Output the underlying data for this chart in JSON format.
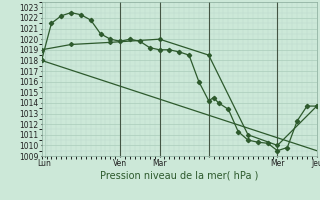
{
  "title": "",
  "xlabel": "Pression niveau de la mer( hPa )",
  "background_color": "#cce8d8",
  "grid_color_major": "#aaccbb",
  "grid_color_minor": "#bbd8cc",
  "line_color": "#2d5a2d",
  "ylim": [
    1009,
    1023.5
  ],
  "xlim": [
    0,
    28
  ],
  "x_tick_positions": [
    0.3,
    8,
    12,
    17,
    24,
    28
  ],
  "x_tick_labels": [
    "Lun",
    "Ven",
    "Mar",
    "",
    "Mer",
    "Jeu"
  ],
  "x_vlines": [
    8.0,
    12.0,
    17.0,
    24.0
  ],
  "line1_x": [
    0,
    1,
    2,
    3,
    4,
    5,
    6,
    7,
    8,
    9,
    10,
    11,
    12,
    13,
    14,
    15,
    16,
    17,
    17.5,
    18,
    19,
    20,
    21,
    22,
    23,
    24,
    25,
    26,
    27,
    28
  ],
  "line1_y": [
    1018.0,
    1021.5,
    1022.2,
    1022.5,
    1022.3,
    1021.8,
    1020.5,
    1020.0,
    1019.8,
    1020.0,
    1019.8,
    1019.2,
    1019.0,
    1019.0,
    1018.8,
    1018.5,
    1016.0,
    1014.2,
    1014.5,
    1014.0,
    1013.4,
    1011.3,
    1010.5,
    1010.3,
    1010.2,
    1009.5,
    1009.8,
    1012.3,
    1013.7,
    1013.7
  ],
  "line2_x": [
    0,
    3,
    7,
    12,
    17,
    21,
    24,
    28
  ],
  "line2_y": [
    1019.0,
    1019.5,
    1019.7,
    1020.0,
    1018.5,
    1011.0,
    1010.0,
    1013.7
  ],
  "line3_x": [
    0,
    28
  ],
  "line3_y": [
    1018.0,
    1009.5
  ]
}
